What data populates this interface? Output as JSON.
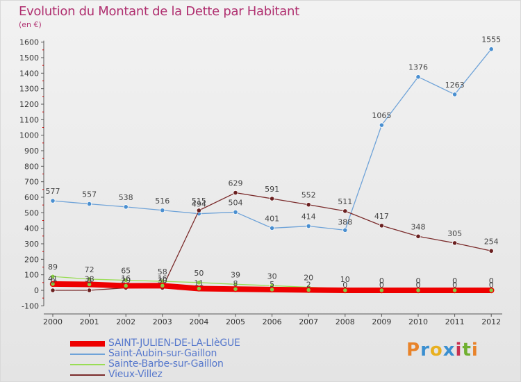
{
  "header": {
    "title": "Evolution du Montant de la Dette par Habitant",
    "subtitle": "(en €)"
  },
  "logo": {
    "text": "Proxiti",
    "colors": [
      "#e8832a",
      "#3a8fd0",
      "#e8b020",
      "#3a8fd0",
      "#c83050",
      "#70b030",
      "#e8832a"
    ]
  },
  "chart_data": {
    "type": "line",
    "title": "Evolution du Montant de la Dette par Habitant",
    "subtitle": "(en €)",
    "x": [
      2000,
      2001,
      2002,
      2003,
      2004,
      2005,
      2006,
      2007,
      2008,
      2009,
      2010,
      2011,
      2012
    ],
    "ylim": [
      -100,
      1600
    ],
    "yticks": [
      -100,
      0,
      100,
      200,
      300,
      400,
      500,
      600,
      700,
      800,
      900,
      1000,
      1100,
      1200,
      1300,
      1400,
      1500,
      1600
    ],
    "grid": false,
    "legend_position": "bottom-left",
    "series": [
      {
        "name": "SAINT-JULIEN-DE-LA-LIèGUE",
        "color": "#ee0000",
        "values": [
          41,
          38,
          29,
          30,
          11,
          8,
          5,
          2,
          0,
          0,
          0,
          0,
          0
        ],
        "labels": [
          "41",
          "38",
          "29",
          "30",
          "11",
          "8",
          "5",
          "2",
          "0",
          "0",
          "0",
          "0",
          "0"
        ]
      },
      {
        "name": "Saint-Aubin-sur-Gaillon",
        "color": "#6fa3d8",
        "values": [
          577,
          557,
          538,
          516,
          494,
          504,
          401,
          414,
          388,
          1065,
          1376,
          1263,
          1555
        ],
        "labels": [
          "577",
          "557",
          "538",
          "516",
          "494",
          "504",
          "401",
          "414",
          "388",
          "1065",
          "1376",
          "1263",
          "1555"
        ]
      },
      {
        "name": "Sainte-Barbe-sur-Gaillon",
        "color": "#99dd55",
        "values": [
          89,
          72,
          65,
          58,
          50,
          39,
          30,
          20,
          10,
          0,
          0,
          0,
          0
        ],
        "labels": [
          "89",
          "72",
          "65",
          "58",
          "50",
          "39",
          "30",
          "20",
          "10",
          "0",
          "0",
          "0",
          "0"
        ]
      },
      {
        "name": "Vieux-Villez",
        "color": "#7a2a2a",
        "values": [
          0,
          0,
          16,
          16,
          515,
          629,
          591,
          552,
          511,
          417,
          348,
          305,
          254
        ],
        "labels": [
          "0",
          "0",
          "16",
          "16",
          "515",
          "629",
          "591",
          "552",
          "511",
          "417",
          "348",
          "305",
          "254"
        ]
      }
    ]
  }
}
